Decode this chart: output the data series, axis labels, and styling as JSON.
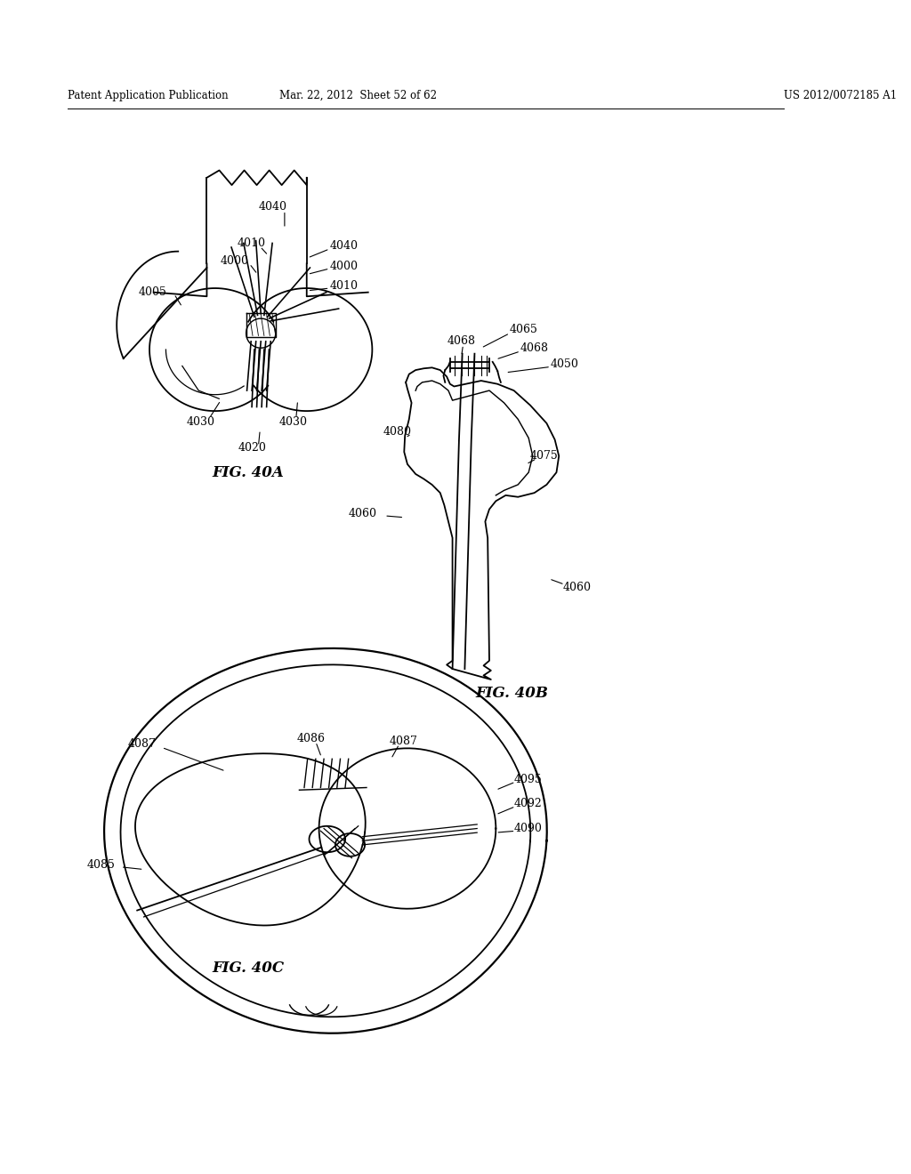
{
  "header_left": "Patent Application Publication",
  "header_mid": "Mar. 22, 2012  Sheet 52 of 62",
  "header_right": "US 2012/0072185 A1",
  "background_color": "#ffffff",
  "fig_width": 10.24,
  "fig_height": 13.2,
  "fig40a_title": "FIG. 40A",
  "fig40b_title": "FIG. 40B",
  "fig40c_title": "FIG. 40C"
}
